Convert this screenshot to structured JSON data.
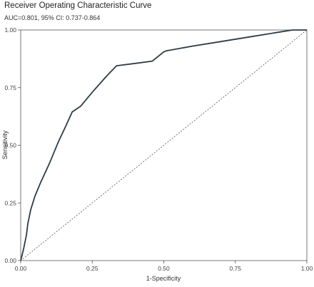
{
  "chart_data": {
    "type": "line",
    "title": "Receiver Operating Characteristic Curve",
    "subtitle": "AUC=0.801, 95% CI: 0.737-0.864",
    "xlabel": "1-Specificity",
    "ylabel": "Sensitivity",
    "xlim": [
      0,
      1
    ],
    "ylim": [
      0,
      1
    ],
    "x_ticks": [
      "0.00",
      "0.25",
      "0.50",
      "0.75",
      "1.00"
    ],
    "y_ticks": [
      "0.00",
      "0.25",
      "0.50",
      "0.75",
      "1.00"
    ],
    "grid": false,
    "series": [
      {
        "role": "roc",
        "color": "#2f3b45",
        "x": [
          0,
          0.01,
          0.02,
          0.025,
          0.035,
          0.05,
          0.07,
          0.1,
          0.13,
          0.16,
          0.18,
          0.21,
          0.25,
          0.3,
          0.335,
          0.4,
          0.46,
          0.48,
          0.5,
          0.51,
          0.6,
          0.7,
          0.8,
          0.9,
          0.95,
          1.0
        ],
        "y": [
          0,
          0.05,
          0.11,
          0.16,
          0.22,
          0.28,
          0.34,
          0.42,
          0.51,
          0.59,
          0.645,
          0.67,
          0.73,
          0.8,
          0.845,
          0.855,
          0.865,
          0.885,
          0.905,
          0.91,
          0.93,
          0.95,
          0.97,
          0.99,
          1.0,
          1.0
        ]
      },
      {
        "role": "reference",
        "color": "#555555",
        "x": [
          0,
          1
        ],
        "y": [
          0,
          1
        ]
      }
    ]
  }
}
